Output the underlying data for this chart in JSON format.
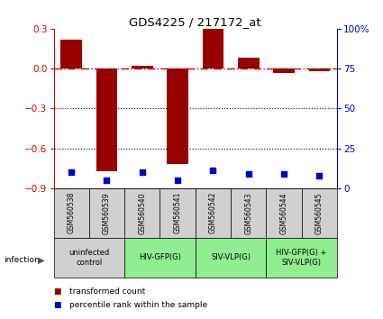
{
  "title": "GDS4225 / 217172_at",
  "samples": [
    "GSM560538",
    "GSM560539",
    "GSM560540",
    "GSM560541",
    "GSM560542",
    "GSM560543",
    "GSM560544",
    "GSM560545"
  ],
  "transformed_count": [
    0.22,
    -0.77,
    0.02,
    -0.72,
    0.3,
    0.08,
    -0.03,
    -0.02
  ],
  "percentile_rank": [
    10,
    5,
    10,
    5,
    11,
    9,
    9,
    8
  ],
  "ylim_left": [
    -0.9,
    0.3
  ],
  "ylim_right": [
    0,
    100
  ],
  "yticks_left": [
    0.3,
    0.0,
    -0.3,
    -0.6,
    -0.9
  ],
  "yticks_right": [
    100,
    75,
    50,
    25,
    0
  ],
  "bar_color": "#990000",
  "dot_color": "#0000cc",
  "hline_color": "#cc0000",
  "gridline_color": "#000000",
  "groups": [
    {
      "label": "uninfected\ncontrol",
      "start": 0,
      "end": 2,
      "color": "#d0d0d0"
    },
    {
      "label": "HIV-GFP(G)",
      "start": 2,
      "end": 4,
      "color": "#90ee90"
    },
    {
      "label": "SIV-VLP(G)",
      "start": 4,
      "end": 6,
      "color": "#90ee90"
    },
    {
      "label": "HIV-GFP(G) +\nSIV-VLP(G)",
      "start": 6,
      "end": 8,
      "color": "#90ee90"
    }
  ],
  "infection_label": "infection",
  "legend_items": [
    {
      "label": "transformed count",
      "color": "#990000"
    },
    {
      "label": "percentile rank within the sample",
      "color": "#0000cc"
    }
  ],
  "tick_label_color_left": "#cc0000",
  "tick_label_color_right": "#0000cc",
  "bar_width": 0.6,
  "sample_box_color": "#d0d0d0",
  "fig_width": 4.25,
  "fig_height": 3.54,
  "dpi": 100
}
